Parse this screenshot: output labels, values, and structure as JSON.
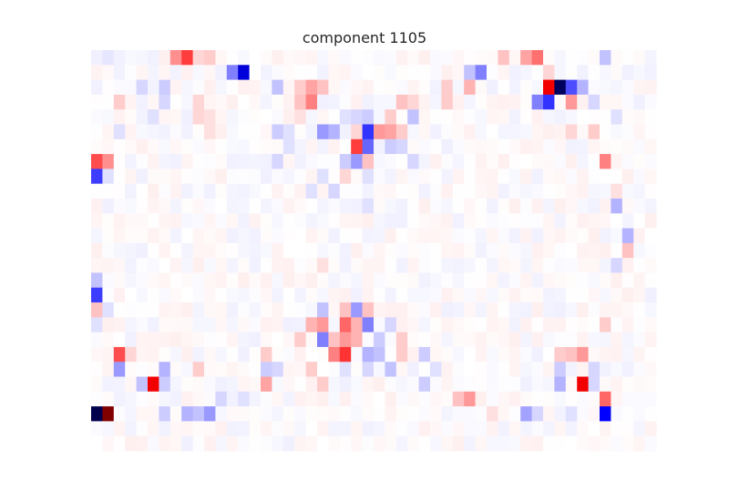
{
  "chart_data": {
    "type": "heatmap",
    "title": "component 1105",
    "xlabel": "",
    "ylabel": "",
    "rows": 27,
    "cols": 50,
    "grid": false,
    "axes_visible": false,
    "colormap": "seismic",
    "value_range": [
      -1,
      1
    ],
    "cells": [
      {
        "r": 0,
        "c": 7,
        "v": 0.22
      },
      {
        "r": 0,
        "c": 8,
        "v": 0.38
      },
      {
        "r": 0,
        "c": 9,
        "v": 0.08
      },
      {
        "r": 0,
        "c": 10,
        "v": 0.1
      },
      {
        "r": 0,
        "c": 1,
        "v": -0.05
      },
      {
        "r": 0,
        "c": 36,
        "v": 0.12
      },
      {
        "r": 0,
        "c": 38,
        "v": 0.18
      },
      {
        "r": 0,
        "c": 39,
        "v": 0.28
      },
      {
        "r": 0,
        "c": 45,
        "v": -0.12
      },
      {
        "r": 1,
        "c": 12,
        "v": -0.25
      },
      {
        "r": 1,
        "c": 13,
        "v": -0.6
      },
      {
        "r": 1,
        "c": 33,
        "v": -0.12
      },
      {
        "r": 1,
        "c": 34,
        "v": -0.25
      },
      {
        "r": 1,
        "c": 40,
        "v": 0.08
      },
      {
        "r": 2,
        "c": 4,
        "v": -0.08
      },
      {
        "r": 2,
        "c": 6,
        "v": -0.1
      },
      {
        "r": 2,
        "c": 16,
        "v": -0.12
      },
      {
        "r": 2,
        "c": 18,
        "v": 0.1
      },
      {
        "r": 2,
        "c": 19,
        "v": 0.18
      },
      {
        "r": 2,
        "c": 20,
        "v": 0.12
      },
      {
        "r": 2,
        "c": 31,
        "v": 0.1
      },
      {
        "r": 2,
        "c": 33,
        "v": 0.15
      },
      {
        "r": 2,
        "c": 40,
        "v": 0.55
      },
      {
        "r": 2,
        "c": 41,
        "v": -0.95
      },
      {
        "r": 2,
        "c": 42,
        "v": -0.35
      },
      {
        "r": 2,
        "c": 43,
        "v": -0.15
      },
      {
        "r": 3,
        "c": 2,
        "v": 0.1
      },
      {
        "r": 3,
        "c": 6,
        "v": -0.08
      },
      {
        "r": 3,
        "c": 9,
        "v": 0.08
      },
      {
        "r": 3,
        "c": 18,
        "v": 0.12
      },
      {
        "r": 3,
        "c": 19,
        "v": 0.25
      },
      {
        "r": 3,
        "c": 27,
        "v": 0.12
      },
      {
        "r": 3,
        "c": 28,
        "v": 0.08
      },
      {
        "r": 3,
        "c": 31,
        "v": 0.1
      },
      {
        "r": 3,
        "c": 39,
        "v": -0.25
      },
      {
        "r": 3,
        "c": 40,
        "v": -0.4
      },
      {
        "r": 3,
        "c": 42,
        "v": 0.2
      },
      {
        "r": 3,
        "c": 44,
        "v": -0.08
      },
      {
        "r": 4,
        "c": 5,
        "v": -0.06
      },
      {
        "r": 4,
        "c": 9,
        "v": 0.08
      },
      {
        "r": 4,
        "c": 10,
        "v": 0.06
      },
      {
        "r": 4,
        "c": 18,
        "v": 0.06
      },
      {
        "r": 4,
        "c": 22,
        "v": -0.06
      },
      {
        "r": 4,
        "c": 23,
        "v": -0.08
      },
      {
        "r": 4,
        "c": 24,
        "v": -0.1
      },
      {
        "r": 4,
        "c": 26,
        "v": 0.1
      },
      {
        "r": 4,
        "c": 28,
        "v": -0.12
      },
      {
        "r": 4,
        "c": 46,
        "v": -0.06
      },
      {
        "r": 5,
        "c": 2,
        "v": -0.06
      },
      {
        "r": 5,
        "c": 10,
        "v": 0.06
      },
      {
        "r": 5,
        "c": 16,
        "v": -0.1
      },
      {
        "r": 5,
        "c": 17,
        "v": -0.06
      },
      {
        "r": 5,
        "c": 20,
        "v": -0.2
      },
      {
        "r": 5,
        "c": 21,
        "v": -0.15
      },
      {
        "r": 5,
        "c": 23,
        "v": 0.08
      },
      {
        "r": 5,
        "c": 24,
        "v": -0.4
      },
      {
        "r": 5,
        "c": 25,
        "v": 0.2
      },
      {
        "r": 5,
        "c": 26,
        "v": 0.18
      },
      {
        "r": 5,
        "c": 27,
        "v": 0.1
      },
      {
        "r": 5,
        "c": 42,
        "v": 0.08
      },
      {
        "r": 5,
        "c": 44,
        "v": 0.1
      },
      {
        "r": 6,
        "c": 17,
        "v": -0.06
      },
      {
        "r": 6,
        "c": 23,
        "v": 0.38
      },
      {
        "r": 6,
        "c": 24,
        "v": -0.3
      },
      {
        "r": 6,
        "c": 26,
        "v": -0.1
      },
      {
        "r": 6,
        "c": 27,
        "v": -0.08
      },
      {
        "r": 7,
        "c": 0,
        "v": 0.35
      },
      {
        "r": 7,
        "c": 1,
        "v": 0.22
      },
      {
        "r": 7,
        "c": 16,
        "v": -0.08
      },
      {
        "r": 7,
        "c": 22,
        "v": -0.1
      },
      {
        "r": 7,
        "c": 23,
        "v": -0.2
      },
      {
        "r": 7,
        "c": 24,
        "v": 0.12
      },
      {
        "r": 7,
        "c": 28,
        "v": -0.08
      },
      {
        "r": 7,
        "c": 45,
        "v": 0.25
      },
      {
        "r": 8,
        "c": 0,
        "v": -0.38
      },
      {
        "r": 8,
        "c": 1,
        "v": -0.06
      },
      {
        "r": 8,
        "c": 20,
        "v": -0.06
      },
      {
        "r": 8,
        "c": 22,
        "v": 0.08
      },
      {
        "r": 8,
        "c": 24,
        "v": -0.06
      },
      {
        "r": 9,
        "c": 19,
        "v": -0.06
      },
      {
        "r": 9,
        "c": 21,
        "v": -0.08
      },
      {
        "r": 9,
        "c": 46,
        "v": 0.06
      },
      {
        "r": 10,
        "c": 24,
        "v": -0.06
      },
      {
        "r": 10,
        "c": 46,
        "v": -0.15
      },
      {
        "r": 12,
        "c": 47,
        "v": -0.15
      },
      {
        "r": 13,
        "c": 47,
        "v": 0.12
      },
      {
        "r": 14,
        "c": 20,
        "v": 0.06
      },
      {
        "r": 14,
        "c": 46,
        "v": -0.08
      },
      {
        "r": 15,
        "c": 0,
        "v": -0.12
      },
      {
        "r": 16,
        "c": 0,
        "v": -0.38
      },
      {
        "r": 17,
        "c": 0,
        "v": 0.12
      },
      {
        "r": 17,
        "c": 1,
        "v": -0.06
      },
      {
        "r": 17,
        "c": 20,
        "v": -0.12
      },
      {
        "r": 17,
        "c": 22,
        "v": 0.12
      },
      {
        "r": 17,
        "c": 23,
        "v": -0.2
      },
      {
        "r": 17,
        "c": 24,
        "v": 0.12
      },
      {
        "r": 18,
        "c": 0,
        "v": -0.06
      },
      {
        "r": 18,
        "c": 19,
        "v": 0.15
      },
      {
        "r": 18,
        "c": 20,
        "v": 0.2
      },
      {
        "r": 18,
        "c": 22,
        "v": 0.3
      },
      {
        "r": 18,
        "c": 23,
        "v": 0.15
      },
      {
        "r": 18,
        "c": 24,
        "v": -0.25
      },
      {
        "r": 18,
        "c": 26,
        "v": -0.08
      },
      {
        "r": 18,
        "c": 45,
        "v": 0.1
      },
      {
        "r": 19,
        "c": 18,
        "v": 0.1
      },
      {
        "r": 19,
        "c": 20,
        "v": -0.25
      },
      {
        "r": 19,
        "c": 21,
        "v": 0.12
      },
      {
        "r": 19,
        "c": 22,
        "v": 0.2
      },
      {
        "r": 19,
        "c": 23,
        "v": 0.15
      },
      {
        "r": 19,
        "c": 25,
        "v": -0.1
      },
      {
        "r": 19,
        "c": 27,
        "v": 0.1
      },
      {
        "r": 20,
        "c": 2,
        "v": 0.35
      },
      {
        "r": 20,
        "c": 3,
        "v": 0.08
      },
      {
        "r": 20,
        "c": 15,
        "v": 0.1
      },
      {
        "r": 20,
        "c": 21,
        "v": 0.25
      },
      {
        "r": 20,
        "c": 22,
        "v": 0.4
      },
      {
        "r": 20,
        "c": 24,
        "v": -0.15
      },
      {
        "r": 20,
        "c": 25,
        "v": -0.12
      },
      {
        "r": 20,
        "c": 27,
        "v": 0.1
      },
      {
        "r": 20,
        "c": 29,
        "v": -0.1
      },
      {
        "r": 20,
        "c": 41,
        "v": 0.1
      },
      {
        "r": 20,
        "c": 42,
        "v": 0.12
      },
      {
        "r": 20,
        "c": 43,
        "v": 0.2
      },
      {
        "r": 21,
        "c": 2,
        "v": -0.2
      },
      {
        "r": 21,
        "c": 6,
        "v": -0.15
      },
      {
        "r": 21,
        "c": 9,
        "v": 0.1
      },
      {
        "r": 21,
        "c": 15,
        "v": -0.1
      },
      {
        "r": 21,
        "c": 16,
        "v": -0.08
      },
      {
        "r": 21,
        "c": 19,
        "v": 0.1
      },
      {
        "r": 21,
        "c": 22,
        "v": -0.06
      },
      {
        "r": 21,
        "c": 24,
        "v": -0.08
      },
      {
        "r": 21,
        "c": 26,
        "v": -0.12
      },
      {
        "r": 21,
        "c": 30,
        "v": -0.06
      },
      {
        "r": 21,
        "c": 41,
        "v": -0.1
      },
      {
        "r": 21,
        "c": 44,
        "v": -0.08
      },
      {
        "r": 22,
        "c": 4,
        "v": -0.12
      },
      {
        "r": 22,
        "c": 5,
        "v": 0.55
      },
      {
        "r": 22,
        "c": 6,
        "v": -0.1
      },
      {
        "r": 22,
        "c": 15,
        "v": 0.18
      },
      {
        "r": 22,
        "c": 20,
        "v": 0.1
      },
      {
        "r": 22,
        "c": 29,
        "v": -0.1
      },
      {
        "r": 22,
        "c": 41,
        "v": -0.15
      },
      {
        "r": 22,
        "c": 43,
        "v": 0.55
      },
      {
        "r": 22,
        "c": 44,
        "v": -0.08
      },
      {
        "r": 23,
        "c": 11,
        "v": -0.08
      },
      {
        "r": 23,
        "c": 13,
        "v": -0.06
      },
      {
        "r": 23,
        "c": 32,
        "v": 0.12
      },
      {
        "r": 23,
        "c": 33,
        "v": 0.2
      },
      {
        "r": 23,
        "c": 45,
        "v": 0.3
      },
      {
        "r": 24,
        "c": 0,
        "v": -1.0
      },
      {
        "r": 24,
        "c": 1,
        "v": 1.0
      },
      {
        "r": 24,
        "c": 6,
        "v": -0.1
      },
      {
        "r": 24,
        "c": 8,
        "v": -0.15
      },
      {
        "r": 24,
        "c": 9,
        "v": -0.12
      },
      {
        "r": 24,
        "c": 10,
        "v": -0.2
      },
      {
        "r": 24,
        "c": 35,
        "v": 0.06
      },
      {
        "r": 24,
        "c": 38,
        "v": -0.18
      },
      {
        "r": 24,
        "c": 39,
        "v": -0.08
      },
      {
        "r": 24,
        "c": 42,
        "v": -0.06
      },
      {
        "r": 24,
        "c": 45,
        "v": -0.5
      }
    ]
  }
}
